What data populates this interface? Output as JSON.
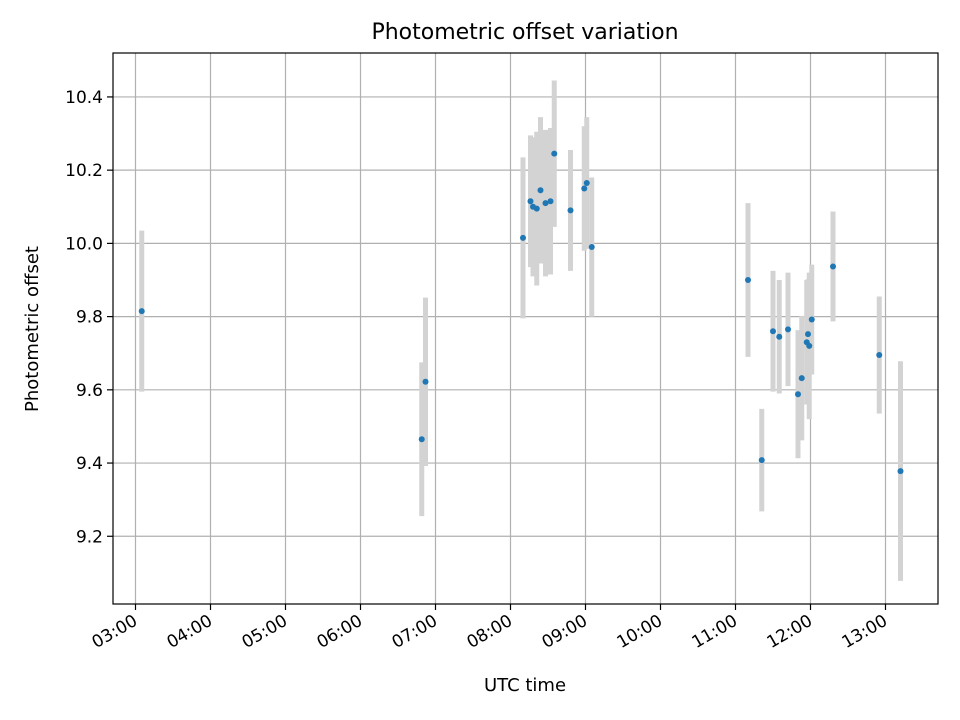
{
  "chart_data": {
    "type": "scatter",
    "title": "Photometric offset variation",
    "xlabel": "UTC time",
    "ylabel": "Photometric offset",
    "x_unit": "hours UTC",
    "xlim": [
      "02:42",
      "13:42"
    ],
    "ylim": [
      9.015,
      10.52
    ],
    "grid": true,
    "x_ticks": [
      "03:00",
      "04:00",
      "05:00",
      "06:00",
      "07:00",
      "08:00",
      "09:00",
      "10:00",
      "11:00",
      "12:00",
      "13:00"
    ],
    "y_ticks": [
      "9.2",
      "9.4",
      "9.6",
      "9.8",
      "10.0",
      "10.2",
      "10.4"
    ],
    "colors": {
      "marker": "#1f77b4",
      "errorbar": "#d3d3d3",
      "grid": "#b0b0b0"
    },
    "points": [
      {
        "x": "03:05",
        "y": 9.815,
        "err": 0.22
      },
      {
        "x": "06:49",
        "y": 9.465,
        "err": 0.21
      },
      {
        "x": "06:52",
        "y": 9.622,
        "err": 0.23
      },
      {
        "x": "08:10",
        "y": 10.015,
        "err": 0.22
      },
      {
        "x": "08:16",
        "y": 10.115,
        "err": 0.18
      },
      {
        "x": "08:18",
        "y": 10.1,
        "err": 0.19
      },
      {
        "x": "08:21",
        "y": 10.095,
        "err": 0.21
      },
      {
        "x": "08:24",
        "y": 10.145,
        "err": 0.2
      },
      {
        "x": "08:28",
        "y": 10.11,
        "err": 0.2
      },
      {
        "x": "08:32",
        "y": 10.115,
        "err": 0.2
      },
      {
        "x": "08:35",
        "y": 10.245,
        "err": 0.2
      },
      {
        "x": "08:48",
        "y": 10.09,
        "err": 0.165
      },
      {
        "x": "08:59",
        "y": 10.15,
        "err": 0.17
      },
      {
        "x": "09:01",
        "y": 10.165,
        "err": 0.18
      },
      {
        "x": "09:05",
        "y": 9.99,
        "err": 0.19
      },
      {
        "x": "11:10",
        "y": 9.9,
        "err": 0.21
      },
      {
        "x": "11:21",
        "y": 9.408,
        "err": 0.14
      },
      {
        "x": "11:30",
        "y": 9.76,
        "err": 0.165
      },
      {
        "x": "11:35",
        "y": 9.745,
        "err": 0.155
      },
      {
        "x": "11:42",
        "y": 9.765,
        "err": 0.155
      },
      {
        "x": "11:50",
        "y": 9.588,
        "err": 0.175
      },
      {
        "x": "11:53",
        "y": 9.632,
        "err": 0.17
      },
      {
        "x": "11:57",
        "y": 9.73,
        "err": 0.17
      },
      {
        "x": "11:58",
        "y": 9.752,
        "err": 0.15
      },
      {
        "x": "11:59",
        "y": 9.72,
        "err": 0.2
      },
      {
        "x": "12:01",
        "y": 9.792,
        "err": 0.15
      },
      {
        "x": "12:18",
        "y": 9.937,
        "err": 0.15
      },
      {
        "x": "12:55",
        "y": 9.695,
        "err": 0.16
      },
      {
        "x": "13:12",
        "y": 9.378,
        "err": 0.3
      }
    ]
  }
}
